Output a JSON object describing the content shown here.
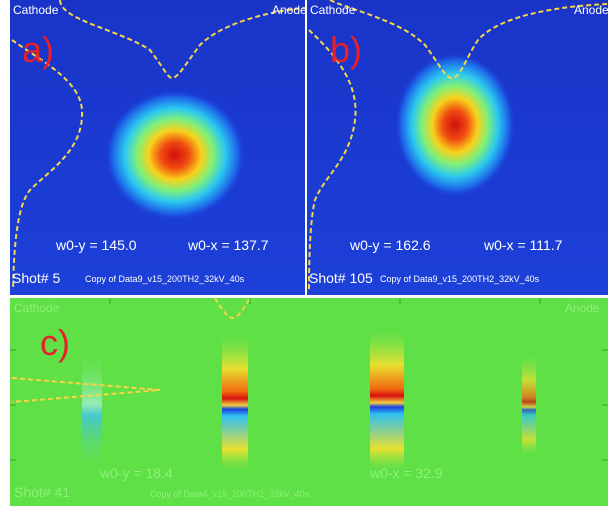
{
  "panels": [
    {
      "label": "a)",
      "cathode": "Cathode",
      "anode": "Anode",
      "w0y": "w0-y = 145.0",
      "w0x": "w0-x = 137.7",
      "shot": "Shot# 5",
      "file": "Copy of Data9_v15_200TH2_32kV_40s"
    },
    {
      "label": "b)",
      "cathode": "Cathode",
      "anode": "Anode",
      "w0y": "w0-y = 162.6",
      "w0x": "w0-x = 111.7",
      "shot": "Shot# 105",
      "file": "Copy of Data9_v15_200TH2_32kV_40s"
    },
    {
      "label": "c)",
      "cathode": "Cathode",
      "anode": "Anode",
      "w0y": "w0-y = 18.4",
      "w0x": "w0-x = 32.9",
      "shot": "Shot# 41",
      "file": "Copy of Data4_v15_200TH2_32kV_40s"
    }
  ]
}
